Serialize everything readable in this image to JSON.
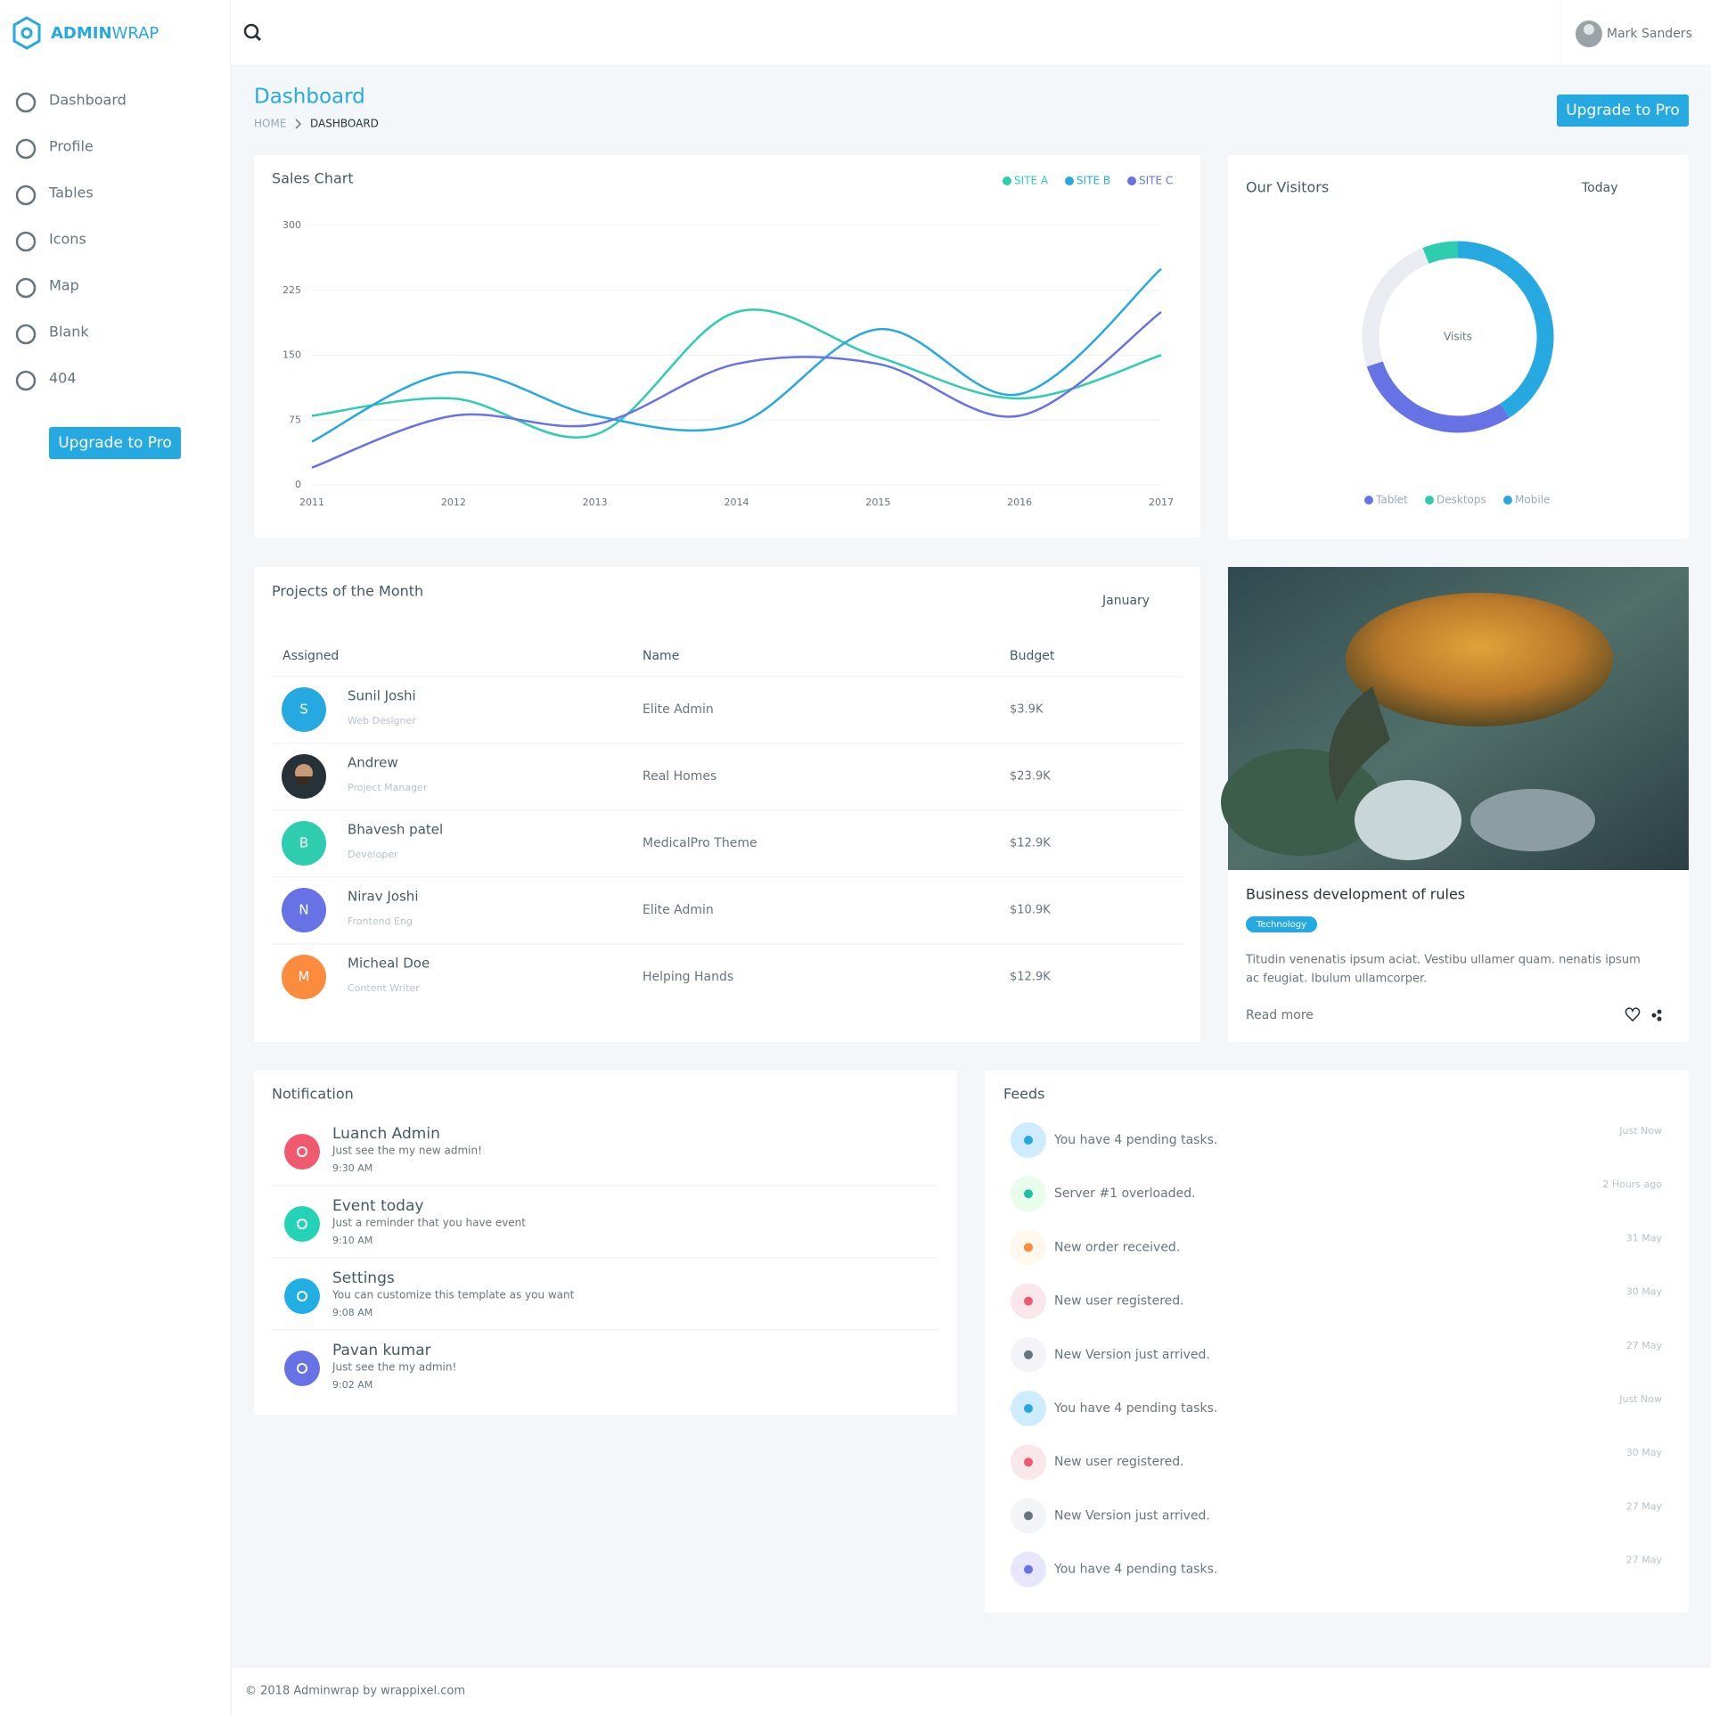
{
  "sidebar": {
    "logo": {
      "bold": "ADMIN",
      "light": "WRAP"
    },
    "nav": [
      "Dashboard",
      "Profile",
      "Tables",
      "Icons",
      "Map",
      "Blank",
      "404"
    ],
    "button": "Upgrade to Pro"
  },
  "header": {
    "user": "Mark Sanders"
  },
  "page": {
    "title": "Dashboard",
    "breadcrumb": [
      "HOME",
      "DASHBOARD"
    ],
    "button": "Upgrade to Pro"
  },
  "chart_data": [
    {
      "type": "line",
      "title": "Sales Chart",
      "categories": [
        "2011",
        "2012",
        "2013",
        "2014",
        "2015",
        "2016",
        "2017"
      ],
      "series": [
        {
          "name": "SITE A",
          "color": "#2ecdb0",
          "values": [
            80,
            100,
            58,
            200,
            148,
            100,
            150
          ]
        },
        {
          "name": "SITE B",
          "color": "#26a9e0",
          "values": [
            50,
            130,
            80,
            70,
            180,
            105,
            250
          ]
        },
        {
          "name": "SITE C",
          "color": "#6772e5",
          "values": [
            20,
            80,
            70,
            140,
            140,
            80,
            200
          ]
        }
      ],
      "ylim": [
        0,
        300
      ],
      "yticks": [
        0,
        75,
        150,
        225,
        300
      ],
      "grid": true
    },
    {
      "type": "donut",
      "title": "Our Visitors",
      "period": "Today",
      "center_label": "Visits",
      "categories": [
        "Tablet",
        "Desktops",
        "Mobile",
        null
      ],
      "values": [
        29,
        6,
        41,
        24
      ],
      "colors": [
        "#6772e5",
        "#2ecdb0",
        "#26a9e0",
        "#e9edf2"
      ]
    }
  ],
  "projects": {
    "title": "Projects of the Month",
    "filter": "January",
    "columns": [
      "Assigned",
      "Name",
      "Budget"
    ],
    "rows": [
      {
        "initial": "S",
        "name": "Sunil Joshi",
        "role": "Web Designer",
        "project": "Elite Admin",
        "budget": "$3.9K"
      },
      {
        "name": "Andrew",
        "role": "Project Manager",
        "project": "Real Homes",
        "budget": "$23.9K"
      },
      {
        "initial": "B",
        "name": "Bhavesh patel",
        "role": "Developer",
        "project": "MedicalPro Theme",
        "budget": "$12.9K"
      },
      {
        "initial": "N",
        "name": "Nirav Joshi",
        "role": "Frontend Eng",
        "project": "Elite Admin",
        "budget": "$10.9K"
      },
      {
        "initial": "M",
        "name": "Micheal Doe",
        "role": "Content Writer",
        "project": "Helping Hands",
        "budget": "$12.9K"
      }
    ]
  },
  "post": {
    "title": "Business development of rules",
    "tag": "Technology",
    "text": [
      "Titudin venenatis ipsum aciat. Vestibu ullamer quam. nenatis ipsum",
      "ac feugiat. Ibulum ullamcorper."
    ],
    "link": "Read more"
  },
  "notifications": {
    "title": "Notification",
    "items": [
      {
        "title": "Luanch Admin",
        "text": "Just see the my new admin!",
        "time": "9:30 AM"
      },
      {
        "title": "Event today",
        "text": "Just a reminder that you have event",
        "time": "9:10 AM"
      },
      {
        "title": "Settings",
        "text": "You can customize this template as you want",
        "time": "9:08 AM"
      },
      {
        "title": "Pavan kumar",
        "text": "Just see the my admin!",
        "time": "9:02 AM"
      }
    ]
  },
  "feeds": {
    "title": "Feeds",
    "items": [
      {
        "text": "You have 4 pending tasks.",
        "time": "Just Now"
      },
      {
        "text": "Server #1 overloaded.",
        "time": "2 Hours ago"
      },
      {
        "text": "New order received.",
        "time": "31 May"
      },
      {
        "text": "New user registered.",
        "time": "30 May"
      },
      {
        "text": "New Version just arrived.",
        "time": "27 May"
      },
      {
        "text": "You have 4 pending tasks.",
        "time": "Just Now"
      },
      {
        "text": "New user registered.",
        "time": "30 May"
      },
      {
        "text": "New Version just arrived.",
        "time": "27 May"
      },
      {
        "text": "You have 4 pending tasks.",
        "time": "27 May"
      }
    ]
  },
  "footer": "© 2018 Adminwrap by wrappixel.com"
}
